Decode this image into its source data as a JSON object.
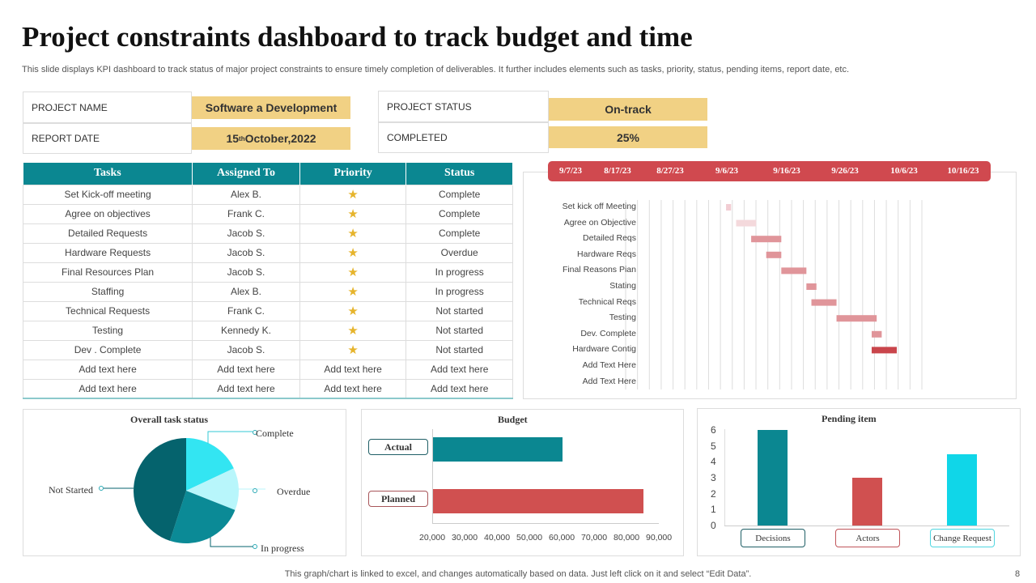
{
  "title": "Project constraints dashboard to track budget and time",
  "subtitle": "This slide displays KPI dashboard to track status of major project constraints to ensure timely completion of deliverables. It further includes elements such as tasks, priority, status, pending items, report date, etc.",
  "info": {
    "project_name_label": "PROJECT NAME",
    "project_name": "Software a Development",
    "report_date_label": "REPORT DATE",
    "report_date_day": "15",
    "report_date_sup": "th",
    "report_date_rest": " October,2022",
    "project_status_label": "PROJECT STATUS",
    "project_status": "On-track",
    "completed_label": "COMPLETED",
    "completed": "25%"
  },
  "table": {
    "headers": [
      "Tasks",
      "Assigned To",
      "Priority",
      "Status"
    ],
    "rows": [
      [
        "Set Kick-off meeting",
        "Alex B.",
        "star",
        "Complete"
      ],
      [
        "Agree on objectives",
        "Frank C.",
        "star",
        "Complete"
      ],
      [
        "Detailed Requests",
        "Jacob S.",
        "star",
        "Complete"
      ],
      [
        "Hardware Requests",
        "Jacob S.",
        "star",
        "Overdue"
      ],
      [
        "Final Resources Plan",
        "Jacob S.",
        "star",
        "In progress"
      ],
      [
        "Staffing",
        "Alex B.",
        "star",
        "In progress"
      ],
      [
        "Technical Requests",
        "Frank C.",
        "star",
        "Not started"
      ],
      [
        "Testing",
        "Kennedy K.",
        "star",
        "Not started"
      ],
      [
        "Dev . Complete",
        "Jacob S.",
        "star",
        "Not started"
      ],
      [
        "Add text here",
        "Add text here",
        "Add text here",
        "Add text here"
      ],
      [
        "Add text here",
        "Add text here",
        "Add text here",
        "Add text here"
      ]
    ]
  },
  "colors": {
    "teal": "#0b8791",
    "red": "#d0494f",
    "gold": "#f1d184",
    "star": "#e6b42c"
  },
  "chart_data": [
    {
      "type": "gantt",
      "header_dates": [
        "9/7/23",
        "8/17/23",
        "8/27/23",
        "9/6/23",
        "9/16/23",
        "9/26/23",
        "10/6/23",
        "10/16/23"
      ],
      "tasks": [
        {
          "name": "Set kick off Meeting",
          "start": "2023-09-11",
          "days": 1,
          "color": "#f2cdd3"
        },
        {
          "name": "Agree on Objective",
          "start": "2023-09-13",
          "days": 4,
          "color": "#f4d9dc"
        },
        {
          "name": "Detailed Reqs",
          "start": "2023-09-16",
          "days": 6,
          "color": "#e0959a"
        },
        {
          "name": "Hardware Reqs",
          "start": "2023-09-19",
          "days": 3,
          "color": "#e0959a"
        },
        {
          "name": "Final Reasons Pian",
          "start": "2023-09-22",
          "days": 5,
          "color": "#e0959a"
        },
        {
          "name": "Stating",
          "start": "2023-09-27",
          "days": 2,
          "color": "#e0959a"
        },
        {
          "name": "Technical Reqs",
          "start": "2023-09-28",
          "days": 5,
          "color": "#e0959a"
        },
        {
          "name": "Testing",
          "start": "2023-10-03",
          "days": 8,
          "color": "#e0959a"
        },
        {
          "name": "Dev. Complete",
          "start": "2023-10-10",
          "days": 2,
          "color": "#e0959a"
        },
        {
          "name": "Hardware Contig",
          "start": "2023-10-10",
          "days": 5,
          "color": "#c9454b"
        },
        {
          "name": "Add Text Here"
        },
        {
          "name": "Add Text Here"
        }
      ],
      "xlim": [
        "2023-08-22",
        "2023-10-20"
      ],
      "grid": true
    },
    {
      "type": "pie",
      "title": "Overall task status",
      "slices": [
        {
          "label": "Complete",
          "value": 18,
          "color": "#33e5f2"
        },
        {
          "label": "Overdue",
          "value": 13,
          "color": "#b8f6fb"
        },
        {
          "label": "In progress",
          "value": 24,
          "color": "#0b8a96"
        },
        {
          "label": "Not Started",
          "value": 45,
          "color": "#05636d"
        }
      ]
    },
    {
      "type": "bar",
      "orientation": "horizontal",
      "title": "Budget",
      "categories": [
        "Actual",
        "Planned"
      ],
      "values": [
        60000,
        85000
      ],
      "colors": [
        "#0b8791",
        "#d05050"
      ],
      "xlim": [
        20000,
        90000
      ],
      "ticks": [
        "20,000",
        "30,000",
        "40,000",
        "50,000",
        "60,000",
        "70,000",
        "80,000",
        "90,000"
      ]
    },
    {
      "type": "bar",
      "title": "Pending item",
      "categories": [
        "Decisions",
        "Actors",
        "Change Request"
      ],
      "values": [
        6,
        3,
        4.5
      ],
      "colors": [
        "#0b8791",
        "#d05050",
        "#10d6e8"
      ],
      "ylim": [
        0,
        6
      ],
      "ticks": [
        "0",
        "1",
        "2",
        "3",
        "4",
        "5",
        "6"
      ]
    }
  ],
  "footer": "This graph/chart is linked to excel,  and changes automatically based on data. Just left click on it and select “Edit Data”.",
  "page_number": "8"
}
